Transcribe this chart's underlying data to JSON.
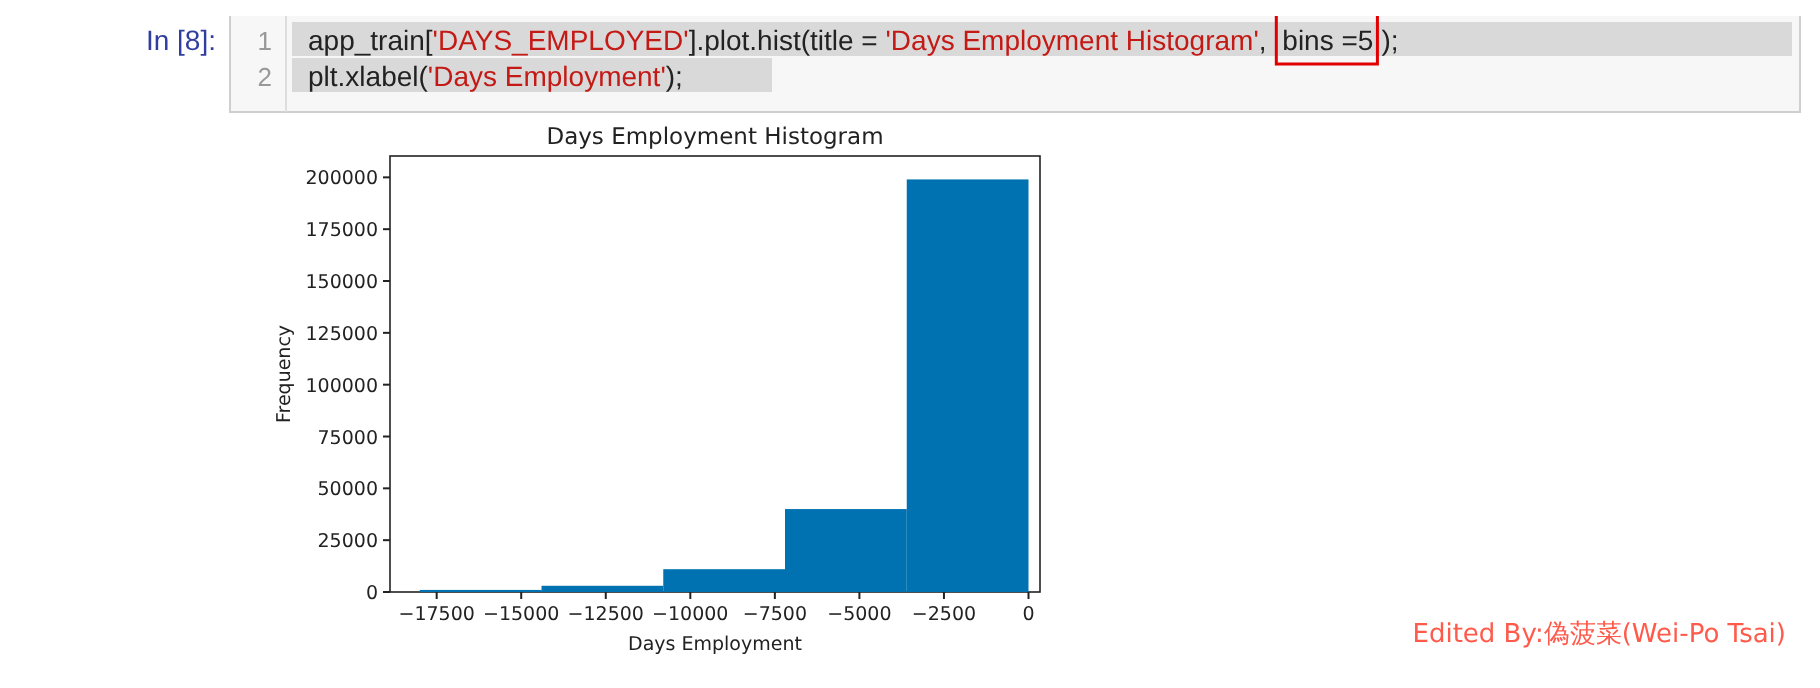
{
  "chart_data": {
    "type": "histogram",
    "title": "Days Employment Histogram",
    "xlabel": "Days Employment",
    "ylabel": "Frequency",
    "bins": [
      -18000,
      -14400,
      -10800,
      -7200,
      -3600,
      0
    ],
    "values": [
      1000,
      3000,
      11000,
      40000,
      199000
    ],
    "color": "#0072b2",
    "xlim": [
      -18880,
      340
    ],
    "xticks": [
      -17500,
      -15000,
      -12500,
      -10000,
      -7500,
      -5000,
      -2500,
      0
    ],
    "ylim": [
      0,
      210300
    ],
    "yticks": [
      0,
      25000,
      50000,
      75000,
      100000,
      125000,
      150000,
      175000,
      200000
    ],
    "grid": false,
    "annotations": [
      "In [8]:",
      "1",
      "app_train['DAYS_EMPLOYED'].plot.hist(title = 'Days Employment Histogram', bins =5);",
      "2",
      "plt.xlabel('Days Employment');",
      "Edited By:偽菠菜(Wei-Po Tsai)"
    ]
  }
}
